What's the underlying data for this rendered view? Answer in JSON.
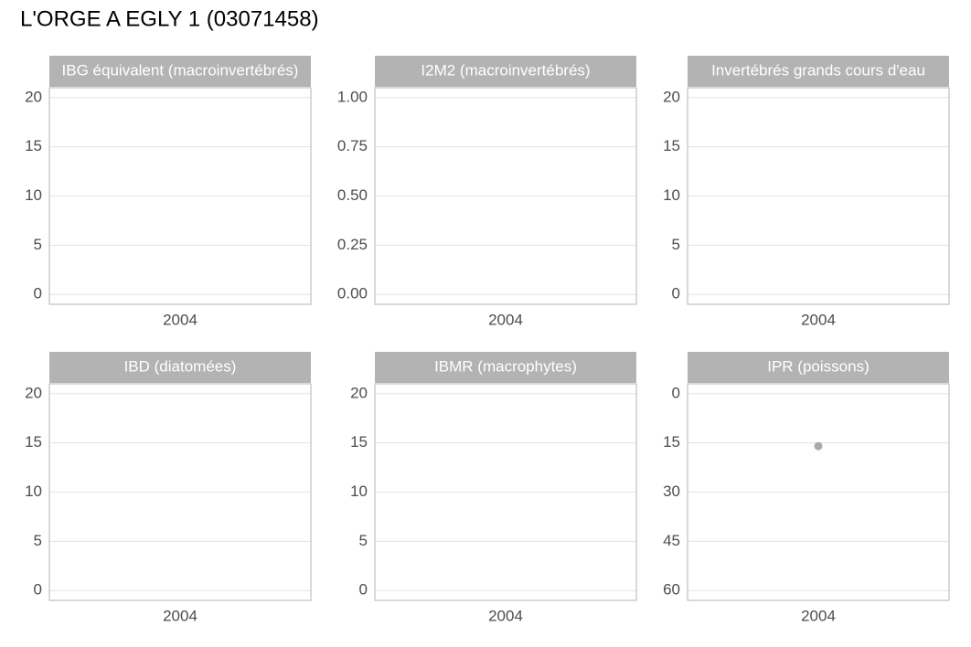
{
  "title": "L'ORGE A EGLY 1 (03071458)",
  "chart_data": [
    {
      "type": "scatter",
      "title": "IBG équivalent (macroinvertébrés)",
      "x": [],
      "values": [],
      "color": "#aaaaaa",
      "xlim": [
        2003,
        2005
      ],
      "xticks": [
        2004
      ],
      "ylim": [
        -1,
        21
      ],
      "yticks": [
        0,
        5,
        10,
        15,
        20
      ],
      "grid": true
    },
    {
      "type": "scatter",
      "title": "I2M2 (macroinvertébrés)",
      "x": [],
      "values": [],
      "color": "#aaaaaa",
      "xlim": [
        2003,
        2005
      ],
      "xticks": [
        2004
      ],
      "ylim": [
        -0.05,
        1.05
      ],
      "yticks": [
        {
          "value": 0,
          "label": "0.00"
        },
        {
          "value": 0.25,
          "label": "0.25"
        },
        {
          "value": 0.5,
          "label": "0.50"
        },
        {
          "value": 0.75,
          "label": "0.75"
        },
        {
          "value": 1,
          "label": "1.00"
        }
      ],
      "grid": true
    },
    {
      "type": "scatter",
      "title": "Invertébrés grands cours d'eau",
      "x": [],
      "values": [],
      "color": "#aaaaaa",
      "xlim": [
        2003,
        2005
      ],
      "xticks": [
        2004
      ],
      "ylim": [
        -1,
        21
      ],
      "yticks": [
        0,
        5,
        10,
        15,
        20
      ],
      "grid": true
    },
    {
      "type": "scatter",
      "title": "IBD (diatomées)",
      "x": [],
      "values": [],
      "color": "#aaaaaa",
      "xlim": [
        2003,
        2005
      ],
      "xticks": [
        2004
      ],
      "ylim": [
        -1,
        21
      ],
      "yticks": [
        0,
        5,
        10,
        15,
        20
      ],
      "grid": true
    },
    {
      "type": "scatter",
      "title": "IBMR (macrophytes)",
      "x": [],
      "values": [],
      "color": "#aaaaaa",
      "xlim": [
        2003,
        2005
      ],
      "xticks": [
        2004
      ],
      "ylim": [
        -1,
        21
      ],
      "yticks": [
        0,
        5,
        10,
        15,
        20
      ],
      "grid": true
    },
    {
      "type": "scatter",
      "title": "IPR (poissons)",
      "x": [
        2004
      ],
      "values": [
        16
      ],
      "color": "#aaaaaa",
      "xlim": [
        2003,
        2005
      ],
      "xticks": [
        2004
      ],
      "ylim": [
        -3,
        63
      ],
      "y_reversed": true,
      "yticks": [
        0,
        15,
        30,
        45,
        60
      ],
      "grid": true
    }
  ]
}
